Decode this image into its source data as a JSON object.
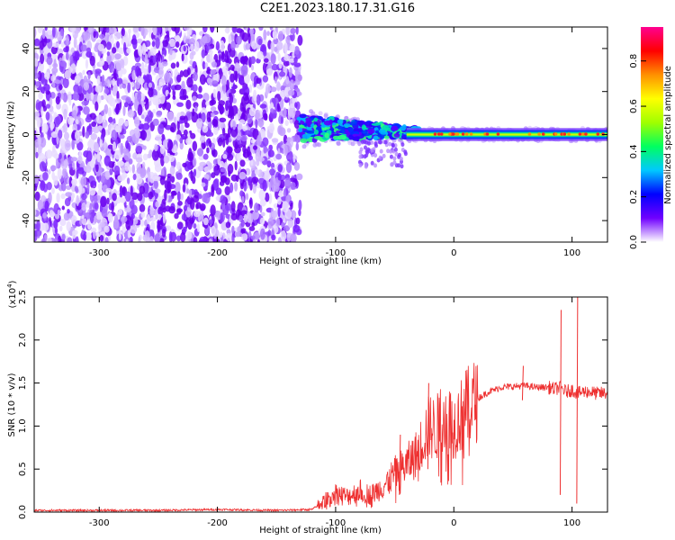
{
  "title": "C2E1.2023.180.17.31.G16",
  "colors": {
    "background": "#ffffff",
    "axis": "#000000",
    "snr_line": "#ee3030",
    "spectrogram_low": "#e6d6ff",
    "spectrogram_mid": "#6a00ee"
  },
  "chart_data": [
    {
      "type": "heatmap",
      "xlabel": "Height of straight line (km)",
      "ylabel": "Frequency (Hz)",
      "xlim": [
        -355,
        130
      ],
      "ylim": [
        -50,
        50
      ],
      "x_ticks": [
        -300,
        -200,
        -100,
        0,
        100
      ],
      "x_tick_labels": [
        "-300",
        "-200",
        "-100",
        "0",
        "100"
      ],
      "y_ticks": [
        -40,
        -20,
        0,
        20,
        40
      ],
      "y_tick_labels": [
        "-40",
        "-20",
        "0",
        "20",
        "40"
      ],
      "colorbar": {
        "label": "Normalized spectral amplitude",
        "range": [
          0,
          0.95
        ],
        "ticks": [
          0.0,
          0.2,
          0.4,
          0.6,
          0.8
        ],
        "tick_labels": [
          "0.0",
          "0.2",
          "0.4",
          "0.6",
          "0.8"
        ],
        "colormap": [
          "#ffffff",
          "#7000ff",
          "#0000ff",
          "#00c8ff",
          "#00ff60",
          "#a0ff00",
          "#ffff00",
          "#ff9000",
          "#ff0000",
          "#ff0090"
        ]
      },
      "regions": [
        {
          "x_range": [
            -355,
            -130
          ],
          "freq_range": [
            -50,
            50
          ],
          "description_level": 0.1
        },
        {
          "x_range": [
            -130,
            -40
          ],
          "freq_center": 3,
          "freq_halfwidth": 7,
          "amplitude": 0.5
        },
        {
          "x_range": [
            -40,
            130
          ],
          "freq_center": 0,
          "freq_halfwidth": 2,
          "amplitude": 0.7
        }
      ]
    },
    {
      "type": "line",
      "xlabel": "Height of straight line (km)",
      "ylabel": "SNR (10 * v/v)",
      "y_scale_label": "(x10",
      "y_scale_exponent": "4",
      "y_scale_suffix": ")",
      "xlim": [
        -355,
        130
      ],
      "ylim": [
        0,
        2.5
      ],
      "x_ticks": [
        -300,
        -200,
        -100,
        0,
        100
      ],
      "x_tick_labels": [
        "-300",
        "-200",
        "-100",
        "0",
        "100"
      ],
      "y_ticks": [
        0.0,
        0.5,
        1.0,
        1.5,
        2.0,
        2.5
      ],
      "y_tick_labels": [
        "0.0",
        "0.5",
        "1.0",
        "1.5",
        "2.0",
        "2.5"
      ],
      "series": [
        {
          "x": [
            -355,
            -300,
            -250,
            -200,
            -150,
            -120,
            -110,
            -100,
            -90,
            -80,
            -70,
            -60,
            -50,
            -40,
            -30,
            -25,
            -20,
            -15,
            -10,
            -5,
            0,
            10,
            20,
            30,
            40,
            50,
            60,
            70,
            80,
            85,
            90,
            95,
            100,
            105,
            110,
            115,
            120,
            130
          ],
          "y": [
            0.02,
            0.02,
            0.02,
            0.03,
            0.02,
            0.03,
            0.12,
            0.22,
            0.18,
            0.25,
            0.2,
            0.3,
            0.45,
            0.55,
            0.7,
            0.9,
            1.0,
            0.95,
            1.15,
            1.1,
            1.0,
            1.2,
            1.32,
            1.4,
            1.45,
            1.46,
            1.47,
            1.45,
            1.45,
            1.43,
            1.45,
            1.4,
            1.42,
            1.38,
            1.4,
            1.4,
            1.38,
            1.38
          ]
        }
      ],
      "spikes": [
        {
          "x": 90,
          "y_min": 0.2,
          "y_max": 2.35
        },
        {
          "x": 104,
          "y_min": 0.1,
          "y_max": 2.5
        },
        {
          "x": 58,
          "y_min": 1.3,
          "y_max": 1.7
        },
        {
          "x": -22,
          "y_min": 0.5,
          "y_max": 1.5
        },
        {
          "x": -46,
          "y_min": 0.2,
          "y_max": 0.9
        }
      ]
    }
  ]
}
